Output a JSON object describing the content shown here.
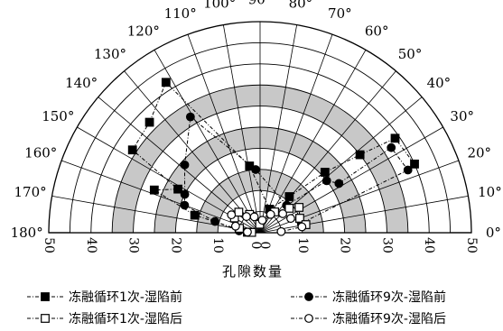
{
  "chart_data": {
    "type": "scatter",
    "subtype": "polar-semicircle",
    "xlabel": "孔隙数量",
    "radial_range": [
      0,
      50
    ],
    "radial_ticks": [
      "50",
      "40",
      "30",
      "20",
      "10",
      "0",
      "0",
      "10",
      "20",
      "30",
      "40",
      "50"
    ],
    "angle_range": [
      0,
      180
    ],
    "angle_ticks": [
      "0°",
      "10°",
      "20°",
      "30°",
      "40°",
      "50°",
      "60°",
      "70°",
      "80°",
      "90°",
      "100°",
      "110°",
      "120°",
      "130°",
      "140°",
      "150°",
      "160°",
      "170°",
      "180°"
    ],
    "grid": true,
    "ring_shading": "alternating gray/white every 5 units",
    "legend_position": "bottom",
    "series": [
      {
        "name": "冻融循环1次-湿陷前",
        "marker": "filled-square",
        "line": "dash-dot",
        "points": [
          {
            "angle": 178,
            "r": 3
          },
          {
            "angle": 165,
            "r": 16
          },
          {
            "angle": 158,
            "r": 27
          },
          {
            "angle": 152,
            "r": 22
          },
          {
            "angle": 147,
            "r": 36
          },
          {
            "angle": 135,
            "r": 37
          },
          {
            "angle": 122,
            "r": 42
          },
          {
            "angle": 99,
            "r": 16
          },
          {
            "angle": 68,
            "r": 6
          },
          {
            "angle": 51,
            "r": 11
          },
          {
            "angle": 43,
            "r": 21
          },
          {
            "angle": 38,
            "r": 30
          },
          {
            "angle": 35,
            "r": 39
          },
          {
            "angle": 24,
            "r": 40
          }
        ]
      },
      {
        "name": "冻融循环9次-湿陷前",
        "marker": "filled-circle",
        "line": "dash-dot",
        "points": [
          {
            "angle": 175,
            "r": 5
          },
          {
            "angle": 166,
            "r": 11
          },
          {
            "angle": 160,
            "r": 19
          },
          {
            "angle": 153,
            "r": 20
          },
          {
            "angle": 138,
            "r": 24
          },
          {
            "angle": 121,
            "r": 32
          },
          {
            "angle": 94,
            "r": 15
          },
          {
            "angle": 46,
            "r": 9
          },
          {
            "angle": 38,
            "r": 20
          },
          {
            "angle": 32,
            "r": 22
          },
          {
            "angle": 33,
            "r": 37
          },
          {
            "angle": 23,
            "r": 38
          },
          {
            "angle": 13,
            "r": 10
          }
        ]
      },
      {
        "name": "冻融循环1次-湿陷后",
        "marker": "open-square",
        "line": "dash-dot",
        "points": [
          {
            "angle": 178,
            "r": 2
          },
          {
            "angle": 168,
            "r": 5
          },
          {
            "angle": 150,
            "r": 7
          },
          {
            "angle": 136,
            "r": 7
          },
          {
            "angle": 120,
            "r": 5
          },
          {
            "angle": 93,
            "r": 2
          },
          {
            "angle": 55,
            "r": 6
          },
          {
            "angle": 40,
            "r": 9
          },
          {
            "angle": 33,
            "r": 11
          },
          {
            "angle": 20,
            "r": 10
          },
          {
            "angle": 10,
            "r": 11
          }
        ]
      },
      {
        "name": "冻融循环9次-湿陷后",
        "marker": "open-circle",
        "line": "dash-dot",
        "points": [
          {
            "angle": 177,
            "r": 3
          },
          {
            "angle": 165,
            "r": 6
          },
          {
            "angle": 148,
            "r": 8
          },
          {
            "angle": 130,
            "r": 5
          },
          {
            "angle": 110,
            "r": 4
          },
          {
            "angle": 80,
            "r": 3
          },
          {
            "angle": 60,
            "r": 5
          },
          {
            "angle": 40,
            "r": 7
          },
          {
            "angle": 25,
            "r": 8
          },
          {
            "angle": 8,
            "r": 10
          },
          {
            "angle": 3,
            "r": 5
          }
        ]
      }
    ]
  }
}
